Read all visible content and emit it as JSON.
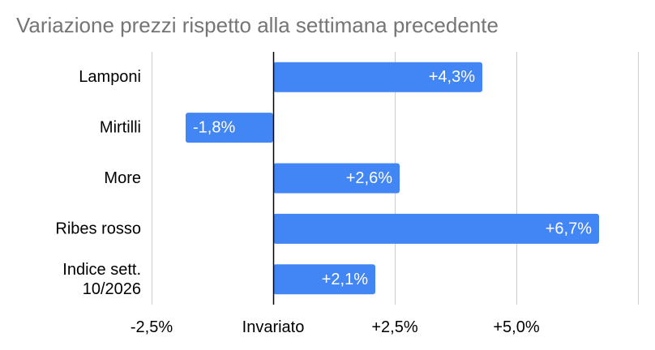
{
  "chart_data": {
    "type": "bar",
    "orientation": "horizontal",
    "title": "Variazione prezzi rispetto alla settimana precedente",
    "categories": [
      [
        "Lamponi"
      ],
      [
        "Mirtilli"
      ],
      [
        "More"
      ],
      [
        "Ribes rosso"
      ],
      [
        "Indice sett.",
        "10/2026"
      ]
    ],
    "values": [
      4.3,
      -1.8,
      2.6,
      6.7,
      2.1
    ],
    "data_labels": [
      "+4,3%",
      "-1,8%",
      "+2,6%",
      "+6,7%",
      "+2,1%"
    ],
    "xlim": [
      -2.5,
      7.5
    ],
    "x_ticks": [
      -2.5,
      0,
      2.5,
      5.0
    ],
    "x_tick_labels": [
      "-2,5%",
      "Invariato",
      "+2,5%",
      "+5,0%"
    ],
    "xlabel": "",
    "ylabel": "",
    "grid": "vertical",
    "legend": "none",
    "colors": {
      "bar": "#4285f4",
      "grid": "#cccccc",
      "zero_line": "#000000",
      "title": "#757575"
    }
  }
}
